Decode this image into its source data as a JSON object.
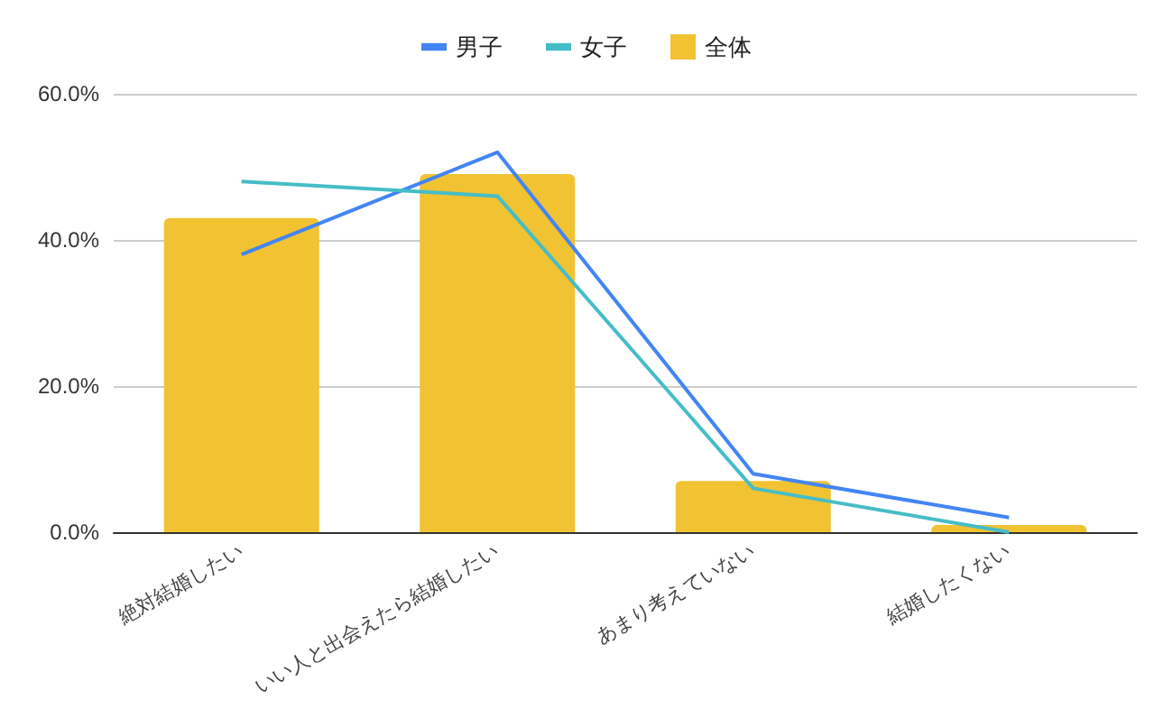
{
  "chart_data": {
    "type": "bar",
    "categories": [
      "絶対結婚したい",
      "いい人と出会えたら結婚したい",
      "あまり考えていない",
      "結婚したくない"
    ],
    "series": [
      {
        "name": "男子",
        "type": "line",
        "color": "#4285f4",
        "values": [
          38,
          52,
          8,
          2
        ]
      },
      {
        "name": "女子",
        "type": "line",
        "color": "#46bdc6",
        "values": [
          48,
          46,
          6,
          0
        ]
      },
      {
        "name": "全体",
        "color": "#f1c232",
        "values": [
          43,
          49,
          7,
          1
        ]
      }
    ],
    "ylim": [
      0,
      60
    ],
    "yticks": [
      {
        "value": 0,
        "label": "0.0%"
      },
      {
        "value": 20,
        "label": "20.0%"
      },
      {
        "value": 40,
        "label": "40.0%"
      },
      {
        "value": 60,
        "label": "60.0%"
      }
    ],
    "grid": "y",
    "legend": "top",
    "marker": "none"
  }
}
